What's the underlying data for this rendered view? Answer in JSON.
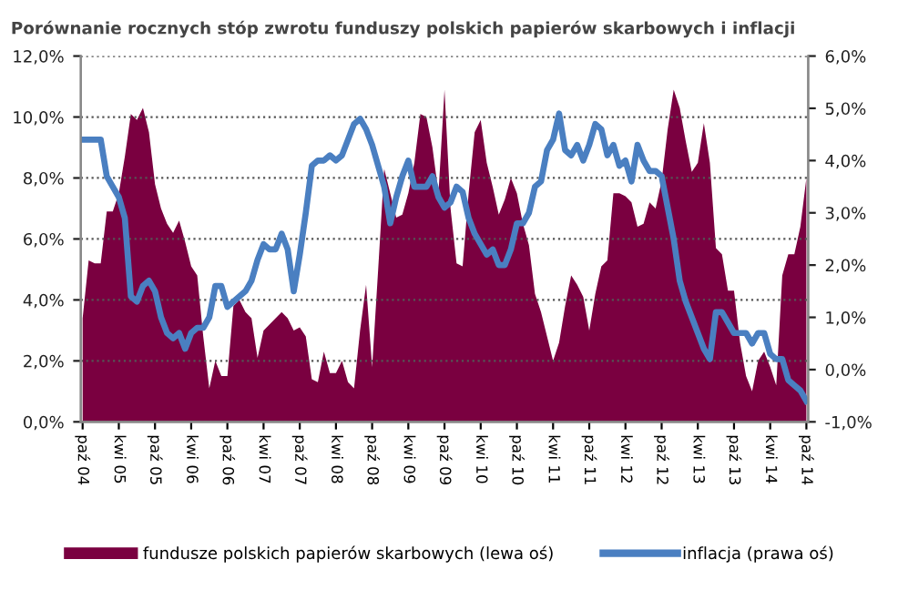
{
  "chart_data": {
    "type": "area",
    "title": "Porównanie rocznych stóp zwrotu funduszy polskich papierów skarbowych i inflacji",
    "categories": [
      "paź 04",
      null,
      null,
      null,
      null,
      null,
      "kwi 05",
      null,
      null,
      null,
      null,
      null,
      "paź 05",
      null,
      null,
      null,
      null,
      null,
      "kwi 06",
      null,
      null,
      null,
      null,
      null,
      "paź 06",
      null,
      null,
      null,
      null,
      null,
      "kwi 07",
      null,
      null,
      null,
      null,
      null,
      "paź 07",
      null,
      null,
      null,
      null,
      null,
      "kwi 08",
      null,
      null,
      null,
      null,
      null,
      "paź 08",
      null,
      null,
      null,
      null,
      null,
      "kwi 09",
      null,
      null,
      null,
      null,
      null,
      "paź 09",
      null,
      null,
      null,
      null,
      null,
      "kwi 10",
      null,
      null,
      null,
      null,
      null,
      "paź 10",
      null,
      null,
      null,
      null,
      null,
      "kwi 11",
      null,
      null,
      null,
      null,
      null,
      "paź 11",
      null,
      null,
      null,
      null,
      null,
      "kwi 12",
      null,
      null,
      null,
      null,
      null,
      "paź 12",
      null,
      null,
      null,
      null,
      null,
      "kwi 13",
      null,
      null,
      null,
      null,
      null,
      "paź 13",
      null,
      null,
      null,
      null,
      null,
      "kwi 14",
      null,
      null,
      null,
      null,
      null,
      "paź 14"
    ],
    "series": [
      {
        "name": "fundusze polskich papierów skarbowych (lewa oś)",
        "color": "#7a0040",
        "values": [
          3.4,
          5.3,
          5.2,
          5.2,
          6.9,
          6.9,
          7.5,
          8.7,
          10.1,
          9.9,
          10.3,
          9.5,
          7.8,
          7.0,
          6.5,
          6.2,
          6.6,
          5.9,
          5.1,
          4.8,
          2.8,
          1.1,
          2.0,
          1.5,
          1.5,
          3.8,
          4.0,
          3.6,
          3.4,
          2.1,
          3.0,
          3.2,
          3.4,
          3.6,
          3.4,
          3.0,
          3.1,
          2.8,
          1.4,
          1.3,
          2.3,
          1.6,
          1.6,
          2.0,
          1.3,
          1.1,
          3.0,
          4.5,
          1.8,
          5.0,
          8.3,
          7.5,
          6.7,
          6.8,
          7.5,
          8.5,
          10.1,
          10.0,
          9.0,
          7.5,
          10.9,
          7.0,
          5.2,
          5.1,
          7.5,
          9.5,
          9.9,
          8.5,
          7.7,
          6.8,
          7.3,
          8.0,
          7.5,
          6.5,
          5.8,
          4.2,
          3.6,
          2.8,
          2.0,
          2.6,
          3.8,
          4.8,
          4.5,
          4.1,
          3.0,
          4.2,
          5.1,
          5.3,
          7.5,
          7.5,
          7.4,
          7.2,
          6.4,
          6.5,
          7.2,
          7.0,
          7.9,
          9.6,
          10.9,
          10.3,
          9.2,
          8.2,
          8.5,
          9.8,
          8.5,
          5.7,
          5.5,
          4.3,
          4.3,
          2.6,
          1.5,
          1.0,
          2.0,
          2.3,
          1.8,
          1.2,
          4.8,
          5.5,
          5.5,
          6.4,
          8.0
        ]
      },
      {
        "name": "inflacja (prawa oś)",
        "type": "line",
        "axis": "y2",
        "color": "#4a7fc1",
        "values": [
          4.4,
          4.4,
          4.4,
          4.4,
          3.7,
          3.5,
          3.3,
          2.9,
          1.4,
          1.3,
          1.6,
          1.7,
          1.5,
          1.0,
          0.7,
          0.6,
          0.7,
          0.4,
          0.7,
          0.8,
          0.8,
          1.0,
          1.6,
          1.6,
          1.2,
          1.3,
          1.4,
          1.5,
          1.7,
          2.1,
          2.4,
          2.3,
          2.3,
          2.6,
          2.3,
          1.5,
          2.2,
          3.0,
          3.9,
          4.0,
          4.0,
          4.1,
          4.0,
          4.1,
          4.4,
          4.7,
          4.8,
          4.6,
          4.3,
          3.9,
          3.5,
          2.8,
          3.3,
          3.7,
          4.0,
          3.5,
          3.5,
          3.5,
          3.7,
          3.3,
          3.1,
          3.2,
          3.5,
          3.4,
          2.9,
          2.6,
          2.4,
          2.2,
          2.3,
          2.0,
          2.0,
          2.3,
          2.8,
          2.8,
          3.0,
          3.5,
          3.6,
          4.2,
          4.4,
          4.9,
          4.2,
          4.1,
          4.3,
          4.0,
          4.3,
          4.7,
          4.6,
          4.1,
          4.3,
          3.9,
          4.0,
          3.6,
          4.3,
          4.0,
          3.8,
          3.8,
          3.7,
          3.1,
          2.5,
          1.7,
          1.3,
          1.0,
          0.7,
          0.4,
          0.2,
          1.1,
          1.1,
          0.9,
          0.7,
          0.7,
          0.7,
          0.5,
          0.7,
          0.7,
          0.3,
          0.2,
          0.2,
          -0.2,
          -0.3,
          -0.4,
          -0.6
        ]
      }
    ],
    "ylim": [
      0,
      12
    ],
    "yticks": [
      {
        "value": 0,
        "label": "0,0%"
      },
      {
        "value": 2,
        "label": "2,0%"
      },
      {
        "value": 4,
        "label": "4,0%"
      },
      {
        "value": 6,
        "label": "6,0%"
      },
      {
        "value": 8,
        "label": "8,0%"
      },
      {
        "value": 10,
        "label": "10,0%"
      },
      {
        "value": 12,
        "label": "12,0%"
      }
    ],
    "y2lim": [
      -1,
      6
    ],
    "y2ticks": [
      {
        "value": -1,
        "label": "-1,0%"
      },
      {
        "value": 0,
        "label": "0,0%"
      },
      {
        "value": 1,
        "label": "1,0%"
      },
      {
        "value": 2,
        "label": "2,0%"
      },
      {
        "value": 3,
        "label": "3,0%"
      },
      {
        "value": 4,
        "label": "4,0%"
      },
      {
        "value": 5,
        "label": "5,0%"
      },
      {
        "value": 6,
        "label": "6,0%"
      }
    ],
    "grid": "y",
    "legend": "bottom",
    "marker": "none",
    "line_style": "solid"
  }
}
